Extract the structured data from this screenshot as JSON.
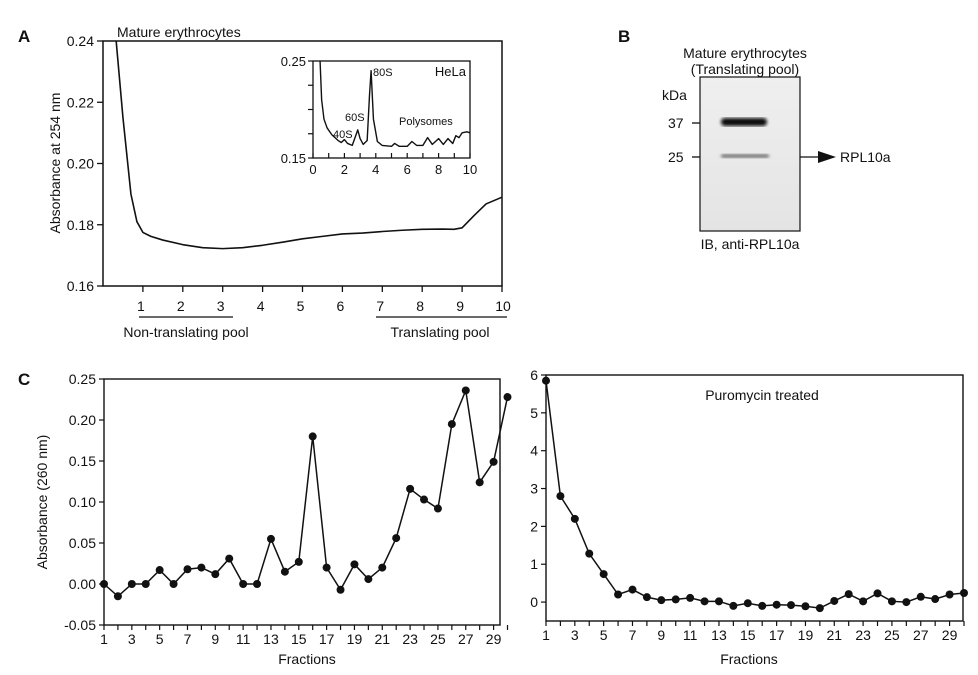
{
  "panel_labels": {
    "a": "A",
    "b": "B",
    "c": "C"
  },
  "chart_data": [
    {
      "id": "A",
      "type": "line",
      "title": "Mature erythrocytes",
      "xlabel": "",
      "ylabel": "Absorbance at 254 nm",
      "xlim": [
        0,
        10
      ],
      "ylim": [
        0.16,
        0.24
      ],
      "xticks": [
        1,
        2,
        3,
        4,
        5,
        6,
        7,
        8,
        9,
        10
      ],
      "yticks": [
        "0.16",
        "0.18",
        "0.20",
        "0.22",
        "0.24"
      ],
      "annotations": {
        "non_translating": "Non-translating pool",
        "translating": "Translating pool"
      },
      "series": [
        {
          "x": [
            0.33,
            0.5,
            0.7,
            0.85,
            1.0,
            1.2,
            1.5,
            2,
            2.5,
            3,
            3.5,
            4,
            4.5,
            5,
            5.5,
            6,
            6.5,
            7,
            7.5,
            8,
            8.5,
            8.8,
            9,
            9.3,
            9.6,
            10
          ],
          "y": [
            0.24,
            0.215,
            0.19,
            0.181,
            0.1775,
            0.1762,
            0.175,
            0.1735,
            0.1725,
            0.1722,
            0.1725,
            0.1733,
            0.1743,
            0.1754,
            0.1762,
            0.177,
            0.1773,
            0.1778,
            0.1782,
            0.1785,
            0.1786,
            0.1785,
            0.179,
            0.183,
            0.1868,
            0.189
          ]
        }
      ]
    },
    {
      "id": "A-inset",
      "type": "line",
      "title": "HeLa",
      "xlim": [
        0,
        10
      ],
      "ylim": [
        0.15,
        0.25
      ],
      "xticks": [
        0,
        2,
        4,
        6,
        8,
        10
      ],
      "yticks": [
        "0.15",
        "0.25"
      ],
      "peak_labels": {
        "s40": "40S",
        "s60": "60S",
        "s80": "80S",
        "poly": "Polysomes"
      },
      "series": [
        {
          "x": [
            0.45,
            0.55,
            0.7,
            0.9,
            1.2,
            1.6,
            1.8,
            2.0,
            2.2,
            2.5,
            2.7,
            2.85,
            3.0,
            3.2,
            3.45,
            3.6,
            3.7,
            3.85,
            4.1,
            4.4,
            5.0,
            5.2,
            5.5,
            6.0,
            6.3,
            6.6,
            7.0,
            7.3,
            7.6,
            8.0,
            8.3,
            8.6,
            8.9,
            9.1,
            9.3,
            9.5,
            9.8,
            10
          ],
          "y": [
            0.25,
            0.21,
            0.19,
            0.181,
            0.174,
            0.168,
            0.166,
            0.169,
            0.165,
            0.163,
            0.172,
            0.179,
            0.17,
            0.164,
            0.168,
            0.215,
            0.24,
            0.19,
            0.167,
            0.163,
            0.162,
            0.165,
            0.162,
            0.162,
            0.167,
            0.163,
            0.163,
            0.171,
            0.164,
            0.17,
            0.164,
            0.17,
            0.165,
            0.173,
            0.171,
            0.176,
            0.177,
            0.176
          ]
        }
      ]
    },
    {
      "id": "C-left",
      "type": "line",
      "xlabel": "Fractions",
      "ylabel": "Absorbance (260 nm)",
      "xlim": [
        1,
        30
      ],
      "ylim": [
        -0.05,
        0.25
      ],
      "xticks": [
        1,
        3,
        5,
        7,
        9,
        11,
        13,
        15,
        17,
        19,
        21,
        23,
        25,
        27,
        29
      ],
      "yticks": [
        "-0.05",
        "0.00",
        "0.05",
        "0.10",
        "0.15",
        "0.20",
        "0.25"
      ],
      "x": [
        1,
        2,
        3,
        4,
        5,
        6,
        7,
        8,
        9,
        10,
        11,
        12,
        13,
        14,
        15,
        16,
        17,
        18,
        19,
        20,
        21,
        22,
        23,
        24,
        25,
        26,
        27,
        28,
        29,
        30
      ],
      "values": [
        0,
        -0.015,
        0,
        0,
        0.017,
        0,
        0.018,
        0.02,
        0.012,
        0.031,
        0,
        0,
        0.055,
        0.015,
        0.027,
        0.18,
        0.02,
        -0.007,
        0.024,
        0.006,
        0.02,
        0.056,
        0.116,
        0.103,
        0.092,
        0.195,
        0.236,
        0.124,
        0.149,
        0.228
      ]
    },
    {
      "id": "C-right",
      "type": "line",
      "title": "Puromycin treated",
      "xlabel": "Fractions",
      "xlim": [
        1,
        30
      ],
      "ylim": [
        -0.5,
        6
      ],
      "xticks": [
        1,
        3,
        5,
        7,
        9,
        11,
        13,
        15,
        17,
        19,
        21,
        23,
        25,
        27,
        29
      ],
      "yticks": [
        "0",
        "1",
        "2",
        "3",
        "4",
        "5",
        "6"
      ],
      "x": [
        1,
        2,
        3,
        4,
        5,
        6,
        7,
        8,
        9,
        10,
        11,
        12,
        13,
        14,
        15,
        16,
        17,
        18,
        19,
        20,
        21,
        22,
        23,
        24,
        25,
        26,
        27,
        28,
        29,
        30
      ],
      "values": [
        5.85,
        2.8,
        2.2,
        1.28,
        0.74,
        0.2,
        0.33,
        0.13,
        0.05,
        0.07,
        0.11,
        0.02,
        0.02,
        -0.1,
        -0.03,
        -0.1,
        -0.07,
        -0.08,
        -0.11,
        -0.16,
        0.03,
        0.21,
        0.02,
        0.23,
        0.02,
        0,
        0.14,
        0.08,
        0.2,
        0.24
      ]
    }
  ],
  "blot": {
    "title_line1": "Mature erythrocytes",
    "title_line2": "(Translating pool)",
    "unit": "kDa",
    "markers": [
      "37",
      "25"
    ],
    "target": "RPL10a",
    "caption": "IB, anti-RPL10a"
  }
}
